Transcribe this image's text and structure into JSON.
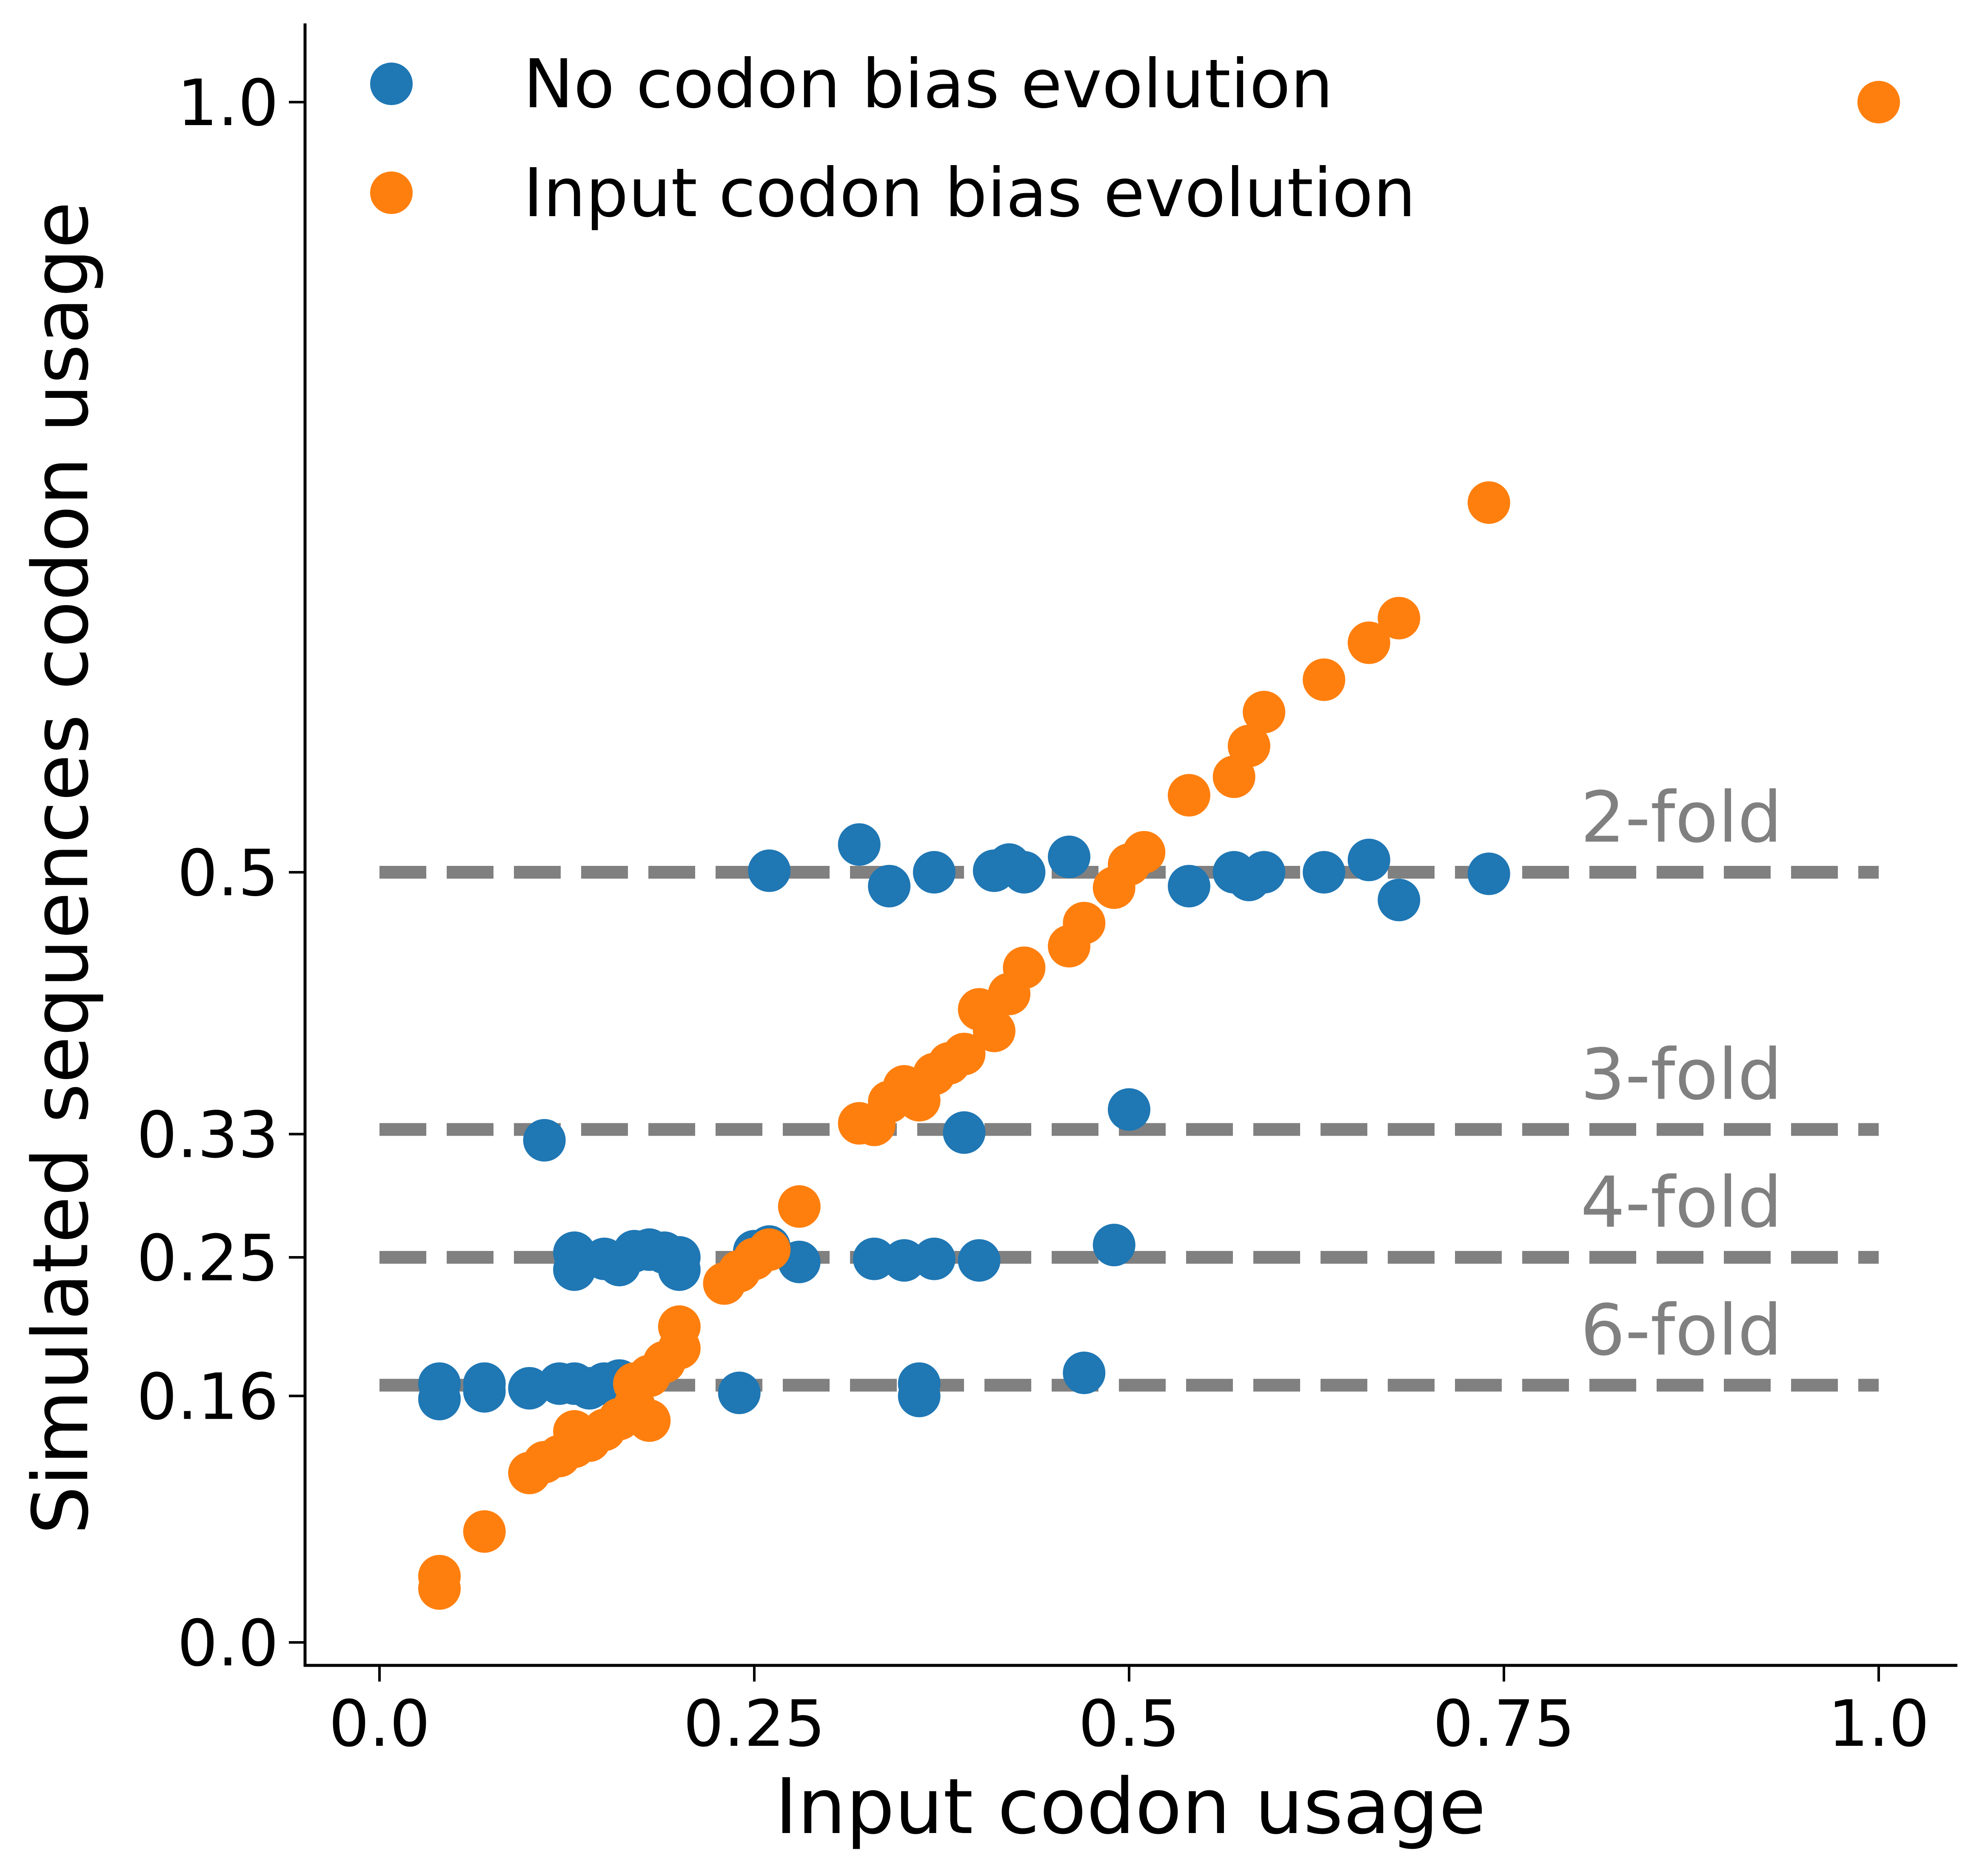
{
  "chart_data": {
    "type": "scatter",
    "xlabel": "Input codon usage",
    "ylabel": "Simulated sequences codon usage",
    "xlim": [
      -0.05,
      1.05
    ],
    "ylim": [
      -0.015,
      1.05
    ],
    "xticks": [
      0.0,
      0.25,
      0.5,
      0.75,
      1.0
    ],
    "xtick_labels": [
      "0.0",
      "0.25",
      "0.5",
      "0.75",
      "1.0"
    ],
    "yticks": [
      0.0,
      0.16,
      0.25,
      0.33,
      0.5,
      1.0
    ],
    "ytick_labels": [
      "0.0",
      "0.16",
      "0.25",
      "0.33",
      "0.5",
      "1.0"
    ],
    "legend_position": "top-left",
    "reference_lines": [
      {
        "label": "2-fold",
        "y": 0.5,
        "x": [
          0.0,
          1.0
        ],
        "color": "#808080",
        "style": "dashed"
      },
      {
        "label": "3-fold",
        "y": 0.333,
        "x": [
          0.0,
          1.0
        ],
        "color": "#808080",
        "style": "dashed"
      },
      {
        "label": "4-fold",
        "y": 0.25,
        "x": [
          0.0,
          1.0
        ],
        "color": "#808080",
        "style": "dashed"
      },
      {
        "label": "6-fold",
        "y": 0.167,
        "x": [
          0.0,
          1.0
        ],
        "color": "#808080",
        "style": "dashed"
      }
    ],
    "series": [
      {
        "name": "No codon bias evolution",
        "color": "#1f77b4",
        "points": [
          [
            0.04,
            0.168
          ],
          [
            0.04,
            0.158
          ],
          [
            0.07,
            0.168
          ],
          [
            0.07,
            0.163
          ],
          [
            0.1,
            0.165
          ],
          [
            0.12,
            0.168
          ],
          [
            0.13,
            0.168
          ],
          [
            0.14,
            0.165
          ],
          [
            0.15,
            0.168
          ],
          [
            0.16,
            0.17
          ],
          [
            0.17,
            0.166
          ],
          [
            0.11,
            0.326
          ],
          [
            0.13,
            0.253
          ],
          [
            0.13,
            0.242
          ],
          [
            0.15,
            0.249
          ],
          [
            0.16,
            0.245
          ],
          [
            0.17,
            0.254
          ],
          [
            0.18,
            0.255
          ],
          [
            0.19,
            0.253
          ],
          [
            0.2,
            0.25
          ],
          [
            0.2,
            0.242
          ],
          [
            0.25,
            0.254
          ],
          [
            0.26,
            0.257
          ],
          [
            0.28,
            0.247
          ],
          [
            0.33,
            0.249
          ],
          [
            0.35,
            0.248
          ],
          [
            0.37,
            0.249
          ],
          [
            0.4,
            0.248
          ],
          [
            0.24,
            0.162
          ],
          [
            0.36,
            0.168
          ],
          [
            0.36,
            0.16
          ],
          [
            0.47,
            0.175
          ],
          [
            0.39,
            0.331
          ],
          [
            0.5,
            0.346
          ],
          [
            0.49,
            0.258
          ],
          [
            0.26,
            0.501
          ],
          [
            0.32,
            0.518
          ],
          [
            0.34,
            0.491
          ],
          [
            0.37,
            0.5
          ],
          [
            0.41,
            0.501
          ],
          [
            0.42,
            0.505
          ],
          [
            0.43,
            0.5
          ],
          [
            0.46,
            0.51
          ],
          [
            0.54,
            0.491
          ],
          [
            0.57,
            0.5
          ],
          [
            0.58,
            0.495
          ],
          [
            0.59,
            0.5
          ],
          [
            0.63,
            0.5
          ],
          [
            0.66,
            0.508
          ],
          [
            0.68,
            0.482
          ],
          [
            0.74,
            0.499
          ]
        ]
      },
      {
        "name": "Input codon bias evolution",
        "color": "#ff7f0e",
        "points": [
          [
            0.04,
            0.043
          ],
          [
            0.04,
            0.035
          ],
          [
            0.07,
            0.072
          ],
          [
            0.1,
            0.11
          ],
          [
            0.11,
            0.117
          ],
          [
            0.12,
            0.121
          ],
          [
            0.13,
            0.127
          ],
          [
            0.13,
            0.137
          ],
          [
            0.14,
            0.131
          ],
          [
            0.15,
            0.138
          ],
          [
            0.16,
            0.145
          ],
          [
            0.17,
            0.153
          ],
          [
            0.17,
            0.168
          ],
          [
            0.18,
            0.144
          ],
          [
            0.18,
            0.173
          ],
          [
            0.19,
            0.182
          ],
          [
            0.2,
            0.191
          ],
          [
            0.2,
            0.205
          ],
          [
            0.23,
            0.233
          ],
          [
            0.24,
            0.241
          ],
          [
            0.25,
            0.249
          ],
          [
            0.26,
            0.255
          ],
          [
            0.28,
            0.283
          ],
          [
            0.32,
            0.337
          ],
          [
            0.33,
            0.336
          ],
          [
            0.34,
            0.351
          ],
          [
            0.35,
            0.361
          ],
          [
            0.36,
            0.352
          ],
          [
            0.37,
            0.369
          ],
          [
            0.38,
            0.376
          ],
          [
            0.39,
            0.382
          ],
          [
            0.4,
            0.411
          ],
          [
            0.41,
            0.397
          ],
          [
            0.42,
            0.421
          ],
          [
            0.43,
            0.438
          ],
          [
            0.46,
            0.452
          ],
          [
            0.47,
            0.467
          ],
          [
            0.49,
            0.49
          ],
          [
            0.5,
            0.505
          ],
          [
            0.51,
            0.513
          ],
          [
            0.54,
            0.55
          ],
          [
            0.57,
            0.562
          ],
          [
            0.58,
            0.582
          ],
          [
            0.59,
            0.604
          ],
          [
            0.63,
            0.625
          ],
          [
            0.66,
            0.649
          ],
          [
            0.68,
            0.665
          ],
          [
            0.74,
            0.74
          ],
          [
            1.0,
            1.0
          ]
        ]
      }
    ]
  }
}
